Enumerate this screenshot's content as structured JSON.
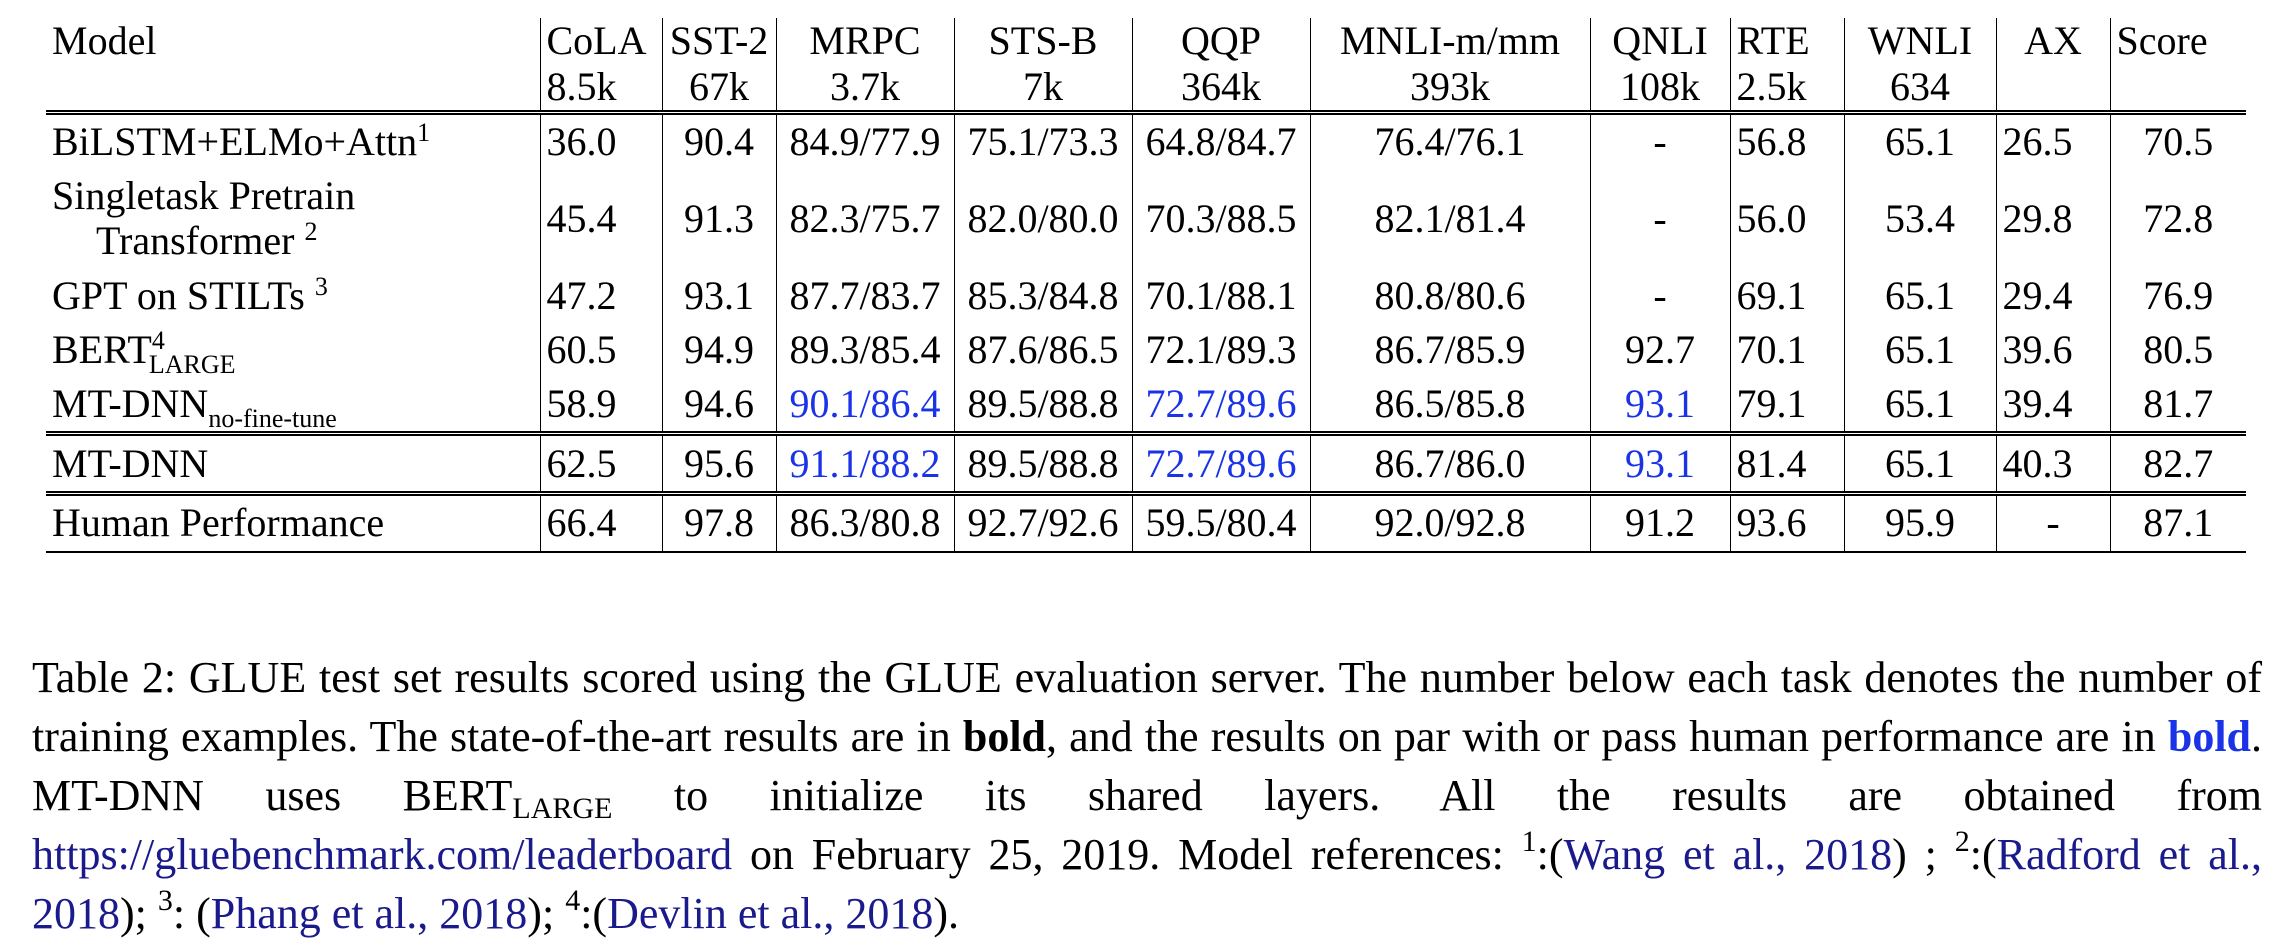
{
  "table": {
    "headers": [
      {
        "task": "Model",
        "size": ""
      },
      {
        "task": "CoLA",
        "size": "8.5k"
      },
      {
        "task": "SST-2",
        "size": "67k"
      },
      {
        "task": "MRPC",
        "size": "3.7k"
      },
      {
        "task": "STS-B",
        "size": "7k"
      },
      {
        "task": "QQP",
        "size": "364k"
      },
      {
        "task": "MNLI-m/mm",
        "size": "393k"
      },
      {
        "task": "QNLI",
        "size": "108k"
      },
      {
        "task": "RTE",
        "size": "2.5k"
      },
      {
        "task": "WNLI",
        "size": "634"
      },
      {
        "task": "AX",
        "size": ""
      },
      {
        "task": "Score",
        "size": ""
      }
    ],
    "rows": [
      {
        "model": "BiLSTM+ELMo+Attn",
        "model_sup": "1",
        "cells": [
          "36.0",
          "90.4",
          "84.9/77.9",
          "75.1/73.3",
          "64.8/84.7",
          "76.4/76.1",
          "-",
          "56.8",
          "65.1",
          "26.5",
          "70.5"
        ]
      },
      {
        "model_line1": "Singletask Pretrain",
        "model_line2": "Transformer",
        "model_sup": "2",
        "cells": [
          "45.4",
          "91.3",
          "82.3/75.7",
          "82.0/80.0",
          "70.3/88.5",
          "82.1/81.4",
          "-",
          "56.0",
          "53.4",
          "29.8",
          "72.8"
        ]
      },
      {
        "model": "GPT on STILTs",
        "model_sup": "3",
        "cells": [
          "47.2",
          "93.1",
          "87.7/83.7",
          "85.3/84.8",
          "70.1/88.1",
          "80.8/80.6",
          "-",
          "69.1",
          "65.1",
          "29.4",
          "76.9"
        ]
      },
      {
        "model": "BERT",
        "model_sup": "4",
        "model_sub": "LARGE",
        "cells": [
          "60.5",
          "94.9",
          "89.3/85.4",
          "87.6/86.5",
          "72.1/89.3",
          "86.7/85.9",
          "92.7",
          "70.1",
          "65.1",
          "39.6",
          "80.5"
        ]
      },
      {
        "model": "MT-DNN",
        "model_sub": "no-fine-tune",
        "cells": [
          "58.9",
          "94.6",
          "90.1/86.4",
          "89.5/88.8",
          "72.7/89.6",
          "86.5/85.8",
          "93.1",
          "79.1",
          "65.1",
          "39.4",
          "81.7"
        ]
      },
      {
        "model": "MT-DNN",
        "cells": [
          "62.5",
          "95.6",
          "91.1/88.2",
          "89.5/88.8",
          "72.7/89.6",
          "86.7/86.0",
          "93.1",
          "81.4",
          "65.1",
          "40.3",
          "82.7"
        ]
      },
      {
        "model": "Human Performance",
        "cells": [
          "66.4",
          "97.8",
          "86.3/80.8",
          "92.7/92.6",
          "59.5/80.4",
          "92.0/92.8",
          "91.2",
          "93.6",
          "95.9",
          "-",
          "87.1"
        ]
      }
    ]
  },
  "caption": {
    "p1": "Table 2: GLUE test set results scored using the GLUE evaluation server. The number below each task denotes the number of training examples. The state-of-the-art results are in ",
    "bold_word": "bold",
    "p2": ", and the results on par with or pass human performance are in ",
    "blue_bold_word": "bold",
    "p3": ". MT-DNN uses BERT",
    "p3_sub": "LARGE",
    "p4": " to initialize its shared layers. All the results are obtained from ",
    "link": "https://gluebenchmark.com/leaderboard",
    "p5": " on February 25, 2019. Model references: ",
    "ref1_sup": "1",
    "ref1_pre": ":(",
    "ref1": "Wang et al., 2018",
    "ref1_post": ") ;",
    "ref2_sup": "2",
    "ref2_pre": ":(",
    "ref2": "Radford et al., 2018",
    "ref2_post": "); ",
    "ref3_sup": "3",
    "ref3_pre": ": (",
    "ref3": "Phang et al., 2018",
    "ref3_post": "); ",
    "ref4_sup": "4",
    "ref4_pre": ":(",
    "ref4": "Devlin et al., 2018",
    "ref4_post": ")."
  },
  "colors": {
    "highlight_blue": "#1a33e6",
    "link_blue": "#1a1a8c"
  }
}
